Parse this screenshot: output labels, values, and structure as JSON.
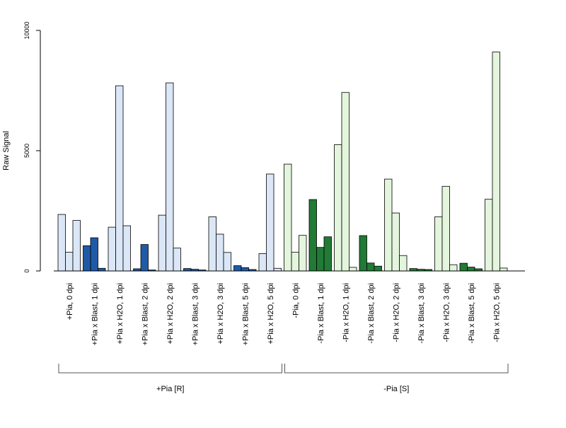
{
  "chart_data": {
    "type": "bar",
    "title": "",
    "ylabel": "Raw Signal",
    "xlabel": "",
    "ylim": [
      0,
      10000
    ],
    "yticks": [
      0,
      5000,
      10000
    ],
    "colors": {
      "plus_dark": "#1f5aa6",
      "plus_light": "#dbe7f6",
      "minus_dark": "#217a35",
      "minus_light": "#e3f5dc",
      "stroke": "#000000"
    },
    "categories": [
      {
        "label": "+Pia, 0 dpi",
        "values": [
          2350,
          780,
          2100
        ],
        "dark": false,
        "group": "plus"
      },
      {
        "label": "+Pia x Blast, 1 dpi",
        "values": [
          1050,
          1380,
          110
        ],
        "dark": true,
        "group": "plus"
      },
      {
        "label": "+Pia x H2O, 1 dpi",
        "values": [
          1820,
          7700,
          1880
        ],
        "dark": false,
        "group": "plus"
      },
      {
        "label": "+Pia x Blast, 2 dpi",
        "values": [
          90,
          1100,
          40
        ],
        "dark": true,
        "group": "plus"
      },
      {
        "label": "+Pia x H2O, 2 dpi",
        "values": [
          2320,
          7820,
          950
        ],
        "dark": false,
        "group": "plus"
      },
      {
        "label": "+Pia x Blast, 3 dpi",
        "values": [
          100,
          70,
          40
        ],
        "dark": true,
        "group": "plus"
      },
      {
        "label": "+Pia x H2O, 3 dpi",
        "values": [
          2250,
          1530,
          770
        ],
        "dark": false,
        "group": "plus"
      },
      {
        "label": "+Pia x Blast, 5 dpi",
        "values": [
          220,
          140,
          60
        ],
        "dark": true,
        "group": "plus"
      },
      {
        "label": "+Pia x H2O, 5 dpi",
        "values": [
          720,
          4030,
          110
        ],
        "dark": false,
        "group": "plus"
      },
      {
        "label": "-Pia, 0 dpi",
        "values": [
          4440,
          780,
          1480
        ],
        "dark": false,
        "group": "minus"
      },
      {
        "label": "-Pia x Blast, 1 dpi",
        "values": [
          2970,
          980,
          1420
        ],
        "dark": true,
        "group": "minus"
      },
      {
        "label": "-Pia x H2O, 1 dpi",
        "values": [
          5250,
          7420,
          150
        ],
        "dark": false,
        "group": "minus"
      },
      {
        "label": "-Pia x Blast, 2 dpi",
        "values": [
          1470,
          330,
          200
        ],
        "dark": true,
        "group": "minus"
      },
      {
        "label": "-Pia x H2O, 2 dpi",
        "values": [
          3820,
          2410,
          640
        ],
        "dark": false,
        "group": "minus"
      },
      {
        "label": "-Pia x Blast, 3 dpi",
        "values": [
          100,
          70,
          60
        ],
        "dark": true,
        "group": "minus"
      },
      {
        "label": "-Pia x H2O, 3 dpi",
        "values": [
          2250,
          3520,
          260
        ],
        "dark": false,
        "group": "minus"
      },
      {
        "label": "-Pia x Blast, 5 dpi",
        "values": [
          320,
          160,
          90
        ],
        "dark": true,
        "group": "minus"
      },
      {
        "label": "-Pia x H2O, 5 dpi",
        "values": [
          2980,
          9100,
          120
        ],
        "dark": false,
        "group": "minus"
      }
    ],
    "groups": [
      {
        "label": "+Pia [R]",
        "first": 0,
        "last": 8
      },
      {
        "label": "-Pia [S]",
        "first": 9,
        "last": 17
      }
    ]
  }
}
